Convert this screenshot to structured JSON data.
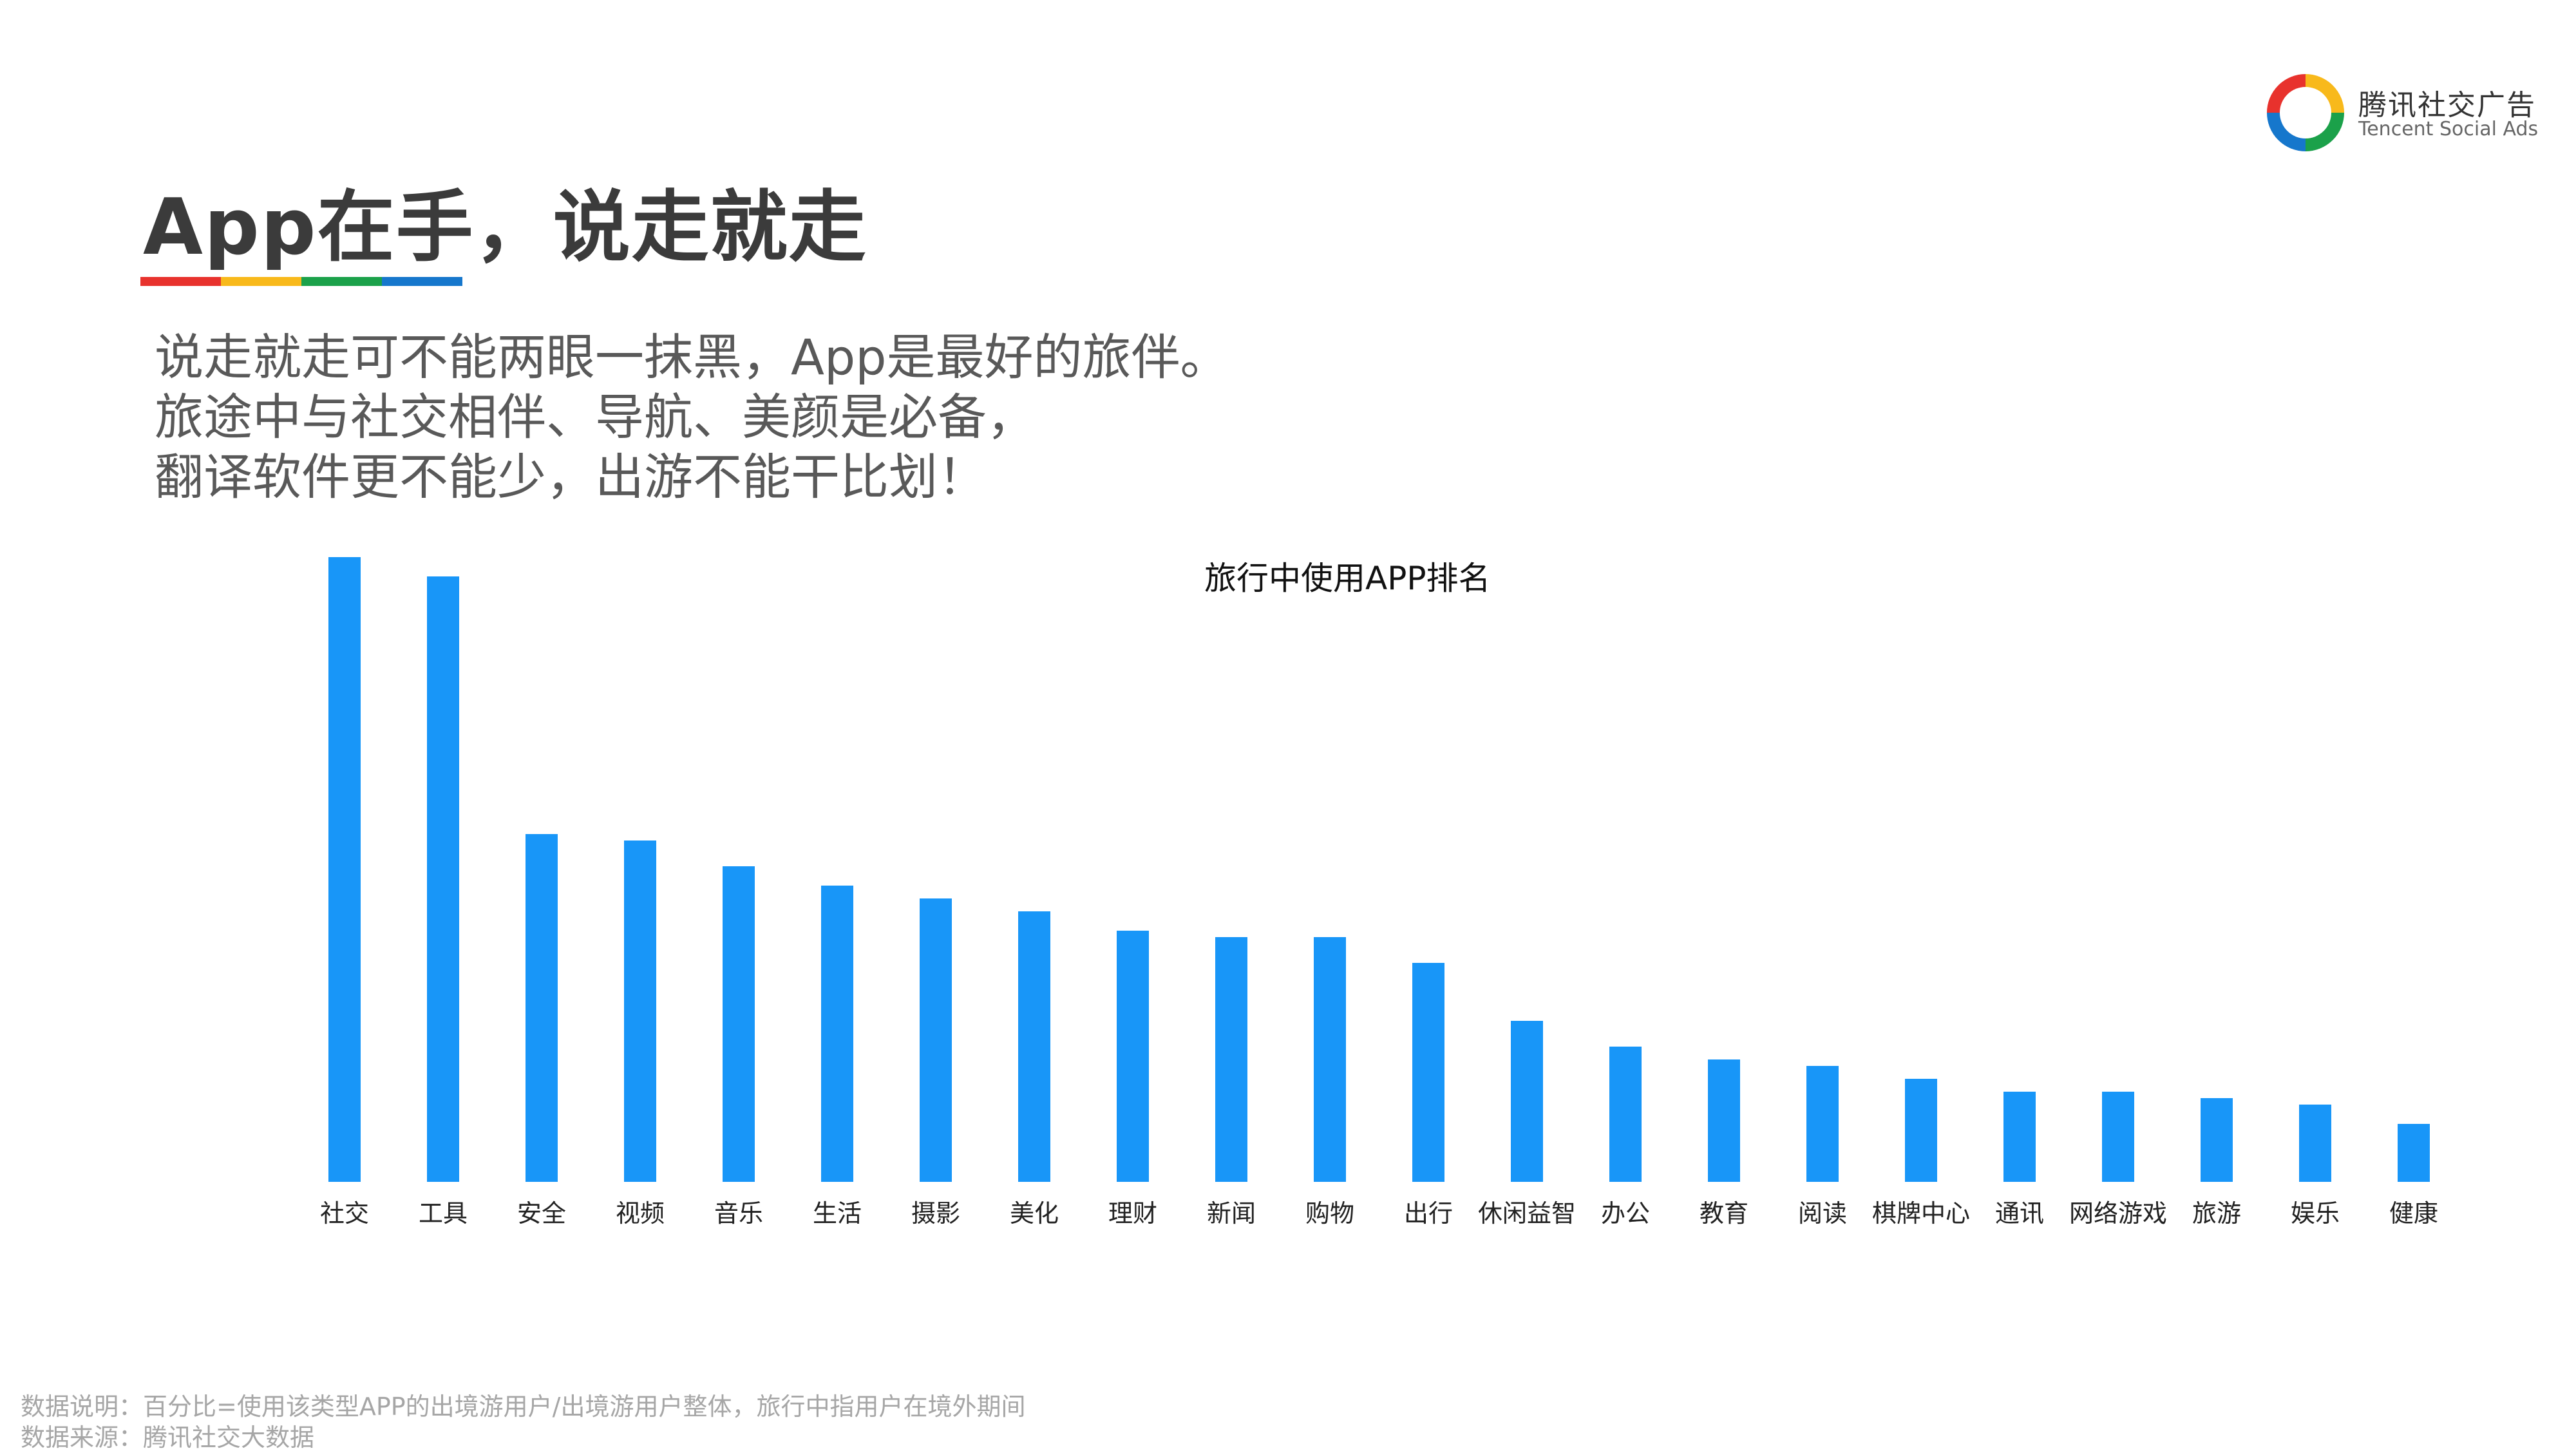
{
  "brand": {
    "name_cn": "腾讯社交广告",
    "name_en": "Tencent Social Ads",
    "logo_colors": [
      "#e8322d",
      "#f8b91b",
      "#1ba14a",
      "#1677cc"
    ]
  },
  "page": {
    "title": "App在手，说走就走",
    "title_underline_colors": [
      "#e8322d",
      "#f8b91b",
      "#1ba14a",
      "#1677cc"
    ],
    "intro_lines": [
      "说走就走可不能两眼一抹黑，App是最好的旅伴。",
      "旅途中与社交相伴、导航、美颜是必备，",
      "翻译软件更不能少，出游不能干比划！"
    ]
  },
  "chart_data": {
    "type": "bar",
    "title": "旅行中使用APP排名",
    "xlabel": "",
    "ylabel": "",
    "categories": [
      "社交",
      "工具",
      "安全",
      "视频",
      "音乐",
      "生活",
      "摄影",
      "美化",
      "理财",
      "新闻",
      "购物",
      "出行",
      "休闲益智",
      "办公",
      "教育",
      "阅读",
      "棋牌中心",
      "通讯",
      "网络游戏",
      "旅游",
      "娱乐",
      "健康"
    ],
    "values": [
      97,
      94,
      54,
      53,
      49,
      46,
      44,
      42,
      39,
      38,
      38,
      34,
      25,
      21,
      19,
      18,
      16,
      14,
      14,
      13,
      12,
      9
    ],
    "ylim": [
      0,
      100
    ],
    "bar_color": "#1896f8",
    "grid": false,
    "legend": "none"
  },
  "notes": {
    "line1": "数据说明：百分比=使用该类型APP的出境游用户/出境游用户整体，旅行中指用户在境外期间",
    "line2": "数据来源：腾讯社交大数据"
  }
}
